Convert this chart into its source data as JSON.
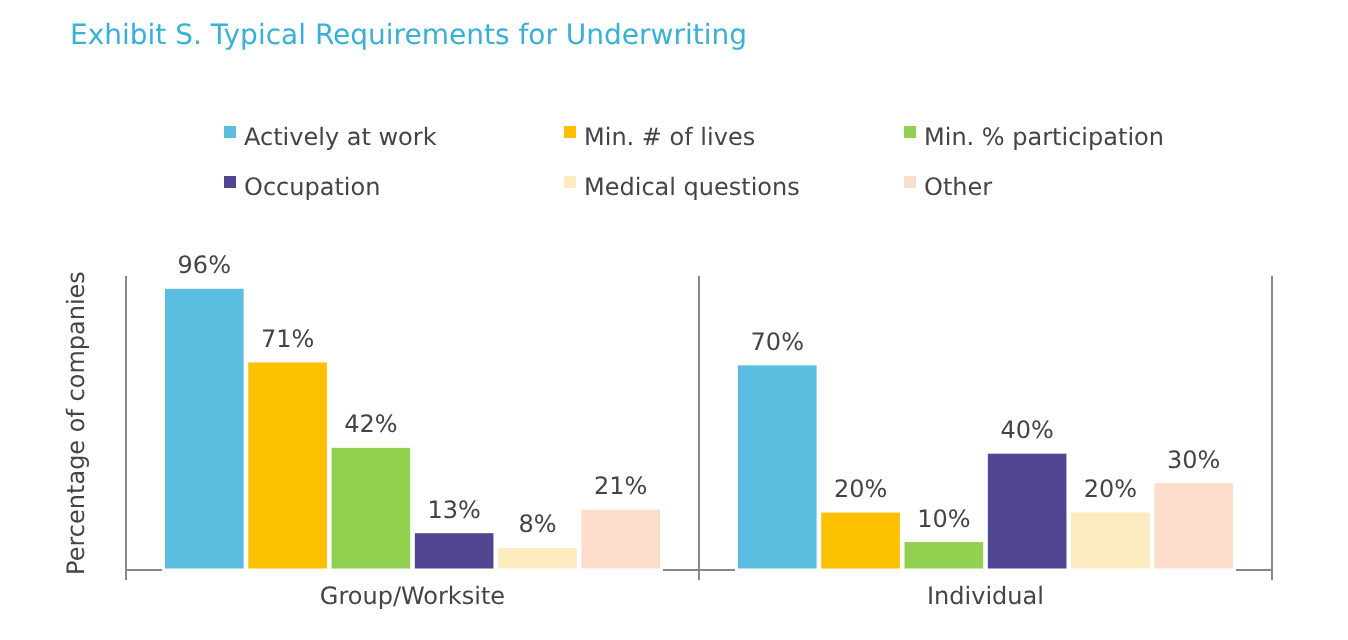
{
  "chart_data": {
    "type": "bar",
    "title": "Exhibit S. Typical Requirements for Underwriting",
    "ylabel": "Percentage of companies",
    "categories": [
      "Group/Worksite",
      "Individual"
    ],
    "series": [
      {
        "name": "Actively at work",
        "color": "#5bbde0",
        "values": [
          96,
          70
        ],
        "value_labels": [
          "96%",
          "70%"
        ]
      },
      {
        "name": "Min. # of lives",
        "color": "#fcc000",
        "values": [
          71,
          20
        ],
        "value_labels": [
          "71%",
          "20%"
        ]
      },
      {
        "name": "Min. % participation",
        "color": "#92d050",
        "values": [
          42,
          10
        ],
        "value_labels": [
          "42%",
          "10%"
        ]
      },
      {
        "name": "Occupation",
        "color": "#4f4590",
        "values": [
          13,
          40
        ],
        "value_labels": [
          "13%",
          "40%"
        ]
      },
      {
        "name": "Medical questions",
        "color": "#fcebc0",
        "values": [
          8,
          20
        ],
        "value_labels": [
          "8%",
          "20%"
        ]
      },
      {
        "name": "Other",
        "color": "#fcdccb",
        "values": [
          21,
          30
        ],
        "value_labels": [
          "21%",
          "30%"
        ]
      }
    ],
    "legend": "top",
    "grid": false
  }
}
